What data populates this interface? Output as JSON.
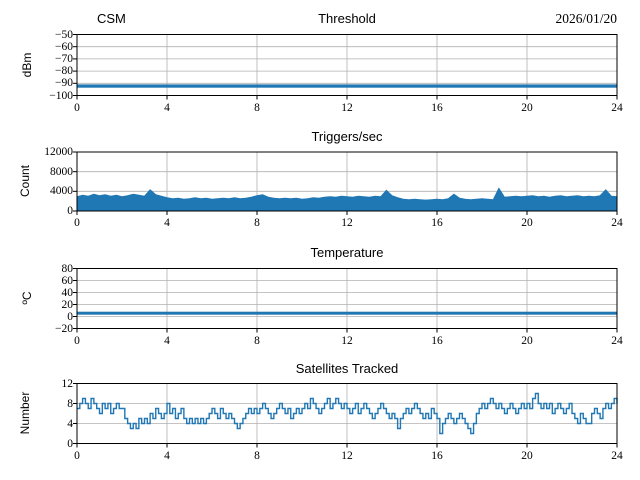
{
  "figure": {
    "background": "#ffffff",
    "accent": "#1f77b4",
    "grid_color": "#b0b0b0",
    "axis_color": "#000000",
    "text_color": "#000000"
  },
  "chart_data": [
    {
      "type": "line",
      "title": "Threshold",
      "title_left": "CSM",
      "title_right": "2026/01/20",
      "ylabel": "dBm",
      "ylim": [
        -100,
        -50
      ],
      "yticks": [
        -100,
        -90,
        -80,
        -70,
        -60,
        -50
      ],
      "xlim": [
        0,
        24
      ],
      "xticks": [
        0,
        4,
        8,
        12,
        16,
        20,
        24
      ],
      "grid": true,
      "legend": "none",
      "series": [
        {
          "name": "threshold_dbm",
          "style": "band",
          "y_center": -92.1,
          "y_band": [
            -93.6,
            -90.9
          ]
        }
      ]
    },
    {
      "type": "line",
      "title": "Triggers/sec",
      "ylabel": "Count",
      "ylim": [
        0,
        12000
      ],
      "yticks": [
        0,
        4000,
        8000,
        12000
      ],
      "xlim": [
        0,
        24
      ],
      "xticks": [
        0,
        4,
        8,
        12,
        16,
        20,
        24
      ],
      "grid": true,
      "legend": "none",
      "series": [
        {
          "name": "triggers_per_sec",
          "style": "fill_band",
          "baseline": 80,
          "x_step": 0.25,
          "envelope": [
            2900,
            3200,
            3000,
            3400,
            3100,
            3300,
            3000,
            3200,
            2900,
            3100,
            3400,
            3200,
            3000,
            4300,
            3300,
            3000,
            2700,
            2500,
            2600,
            2400,
            2500,
            2700,
            2500,
            2600,
            2400,
            2500,
            2600,
            2500,
            2700,
            2500,
            2600,
            2800,
            3100,
            3300,
            2800,
            2600,
            2500,
            2600,
            2500,
            2600,
            2400,
            2500,
            2700,
            2600,
            2800,
            2900,
            2800,
            3000,
            2900,
            2800,
            3000,
            2900,
            2800,
            3000,
            2900,
            4200,
            3100,
            2700,
            2400,
            2300,
            2400,
            2300,
            2200,
            2300,
            2400,
            2300,
            2500,
            3400,
            2600,
            2400,
            2300,
            2400,
            2500,
            2400,
            2300,
            4600,
            2800,
            2900,
            3000,
            2900,
            3000,
            3100,
            2900,
            3000,
            2800,
            3000,
            3100,
            2900,
            3000,
            3100,
            2900,
            3000,
            2900,
            3100,
            4300,
            3000,
            2900
          ]
        }
      ]
    },
    {
      "type": "line",
      "title": "Temperature",
      "ylabel": "ºC",
      "ylim": [
        -20,
        80
      ],
      "yticks": [
        -20,
        0,
        20,
        40,
        60,
        80
      ],
      "xlim": [
        0,
        24
      ],
      "xticks": [
        0,
        4,
        8,
        12,
        16,
        20,
        24
      ],
      "grid": true,
      "legend": "none",
      "series": [
        {
          "name": "temperature_c",
          "style": "band",
          "y_center": 5.5,
          "y_band": [
            3.0,
            8.0
          ]
        }
      ]
    },
    {
      "type": "line",
      "title": "Satellites Tracked",
      "ylabel": "Number",
      "ylim": [
        0,
        12
      ],
      "yticks": [
        0,
        4,
        8,
        12
      ],
      "xlim": [
        0,
        24
      ],
      "xticks": [
        0,
        4,
        8,
        12,
        16,
        20,
        24
      ],
      "grid": true,
      "legend": "none",
      "series": [
        {
          "name": "satellites_tracked",
          "style": "step",
          "x_step": 0.125,
          "values": [
            7,
            8,
            9,
            8,
            7,
            9,
            8,
            7,
            6,
            8,
            7,
            8,
            6,
            7,
            8,
            7,
            7,
            5,
            4,
            3,
            4,
            3,
            5,
            4,
            5,
            4,
            6,
            5,
            7,
            6,
            5,
            6,
            8,
            6,
            7,
            5,
            6,
            7,
            5,
            4,
            5,
            4,
            5,
            4,
            5,
            4,
            5,
            6,
            7,
            6,
            5,
            7,
            6,
            5,
            6,
            5,
            4,
            3,
            4,
            5,
            6,
            7,
            6,
            7,
            6,
            7,
            8,
            7,
            6,
            5,
            6,
            7,
            8,
            7,
            6,
            7,
            5,
            6,
            7,
            6,
            7,
            8,
            7,
            9,
            8,
            7,
            6,
            7,
            8,
            9,
            7,
            8,
            9,
            8,
            7,
            8,
            7,
            6,
            7,
            8,
            6,
            7,
            8,
            7,
            6,
            5,
            6,
            7,
            8,
            7,
            6,
            5,
            6,
            5,
            3,
            5,
            6,
            7,
            6,
            7,
            8,
            7,
            6,
            5,
            6,
            5,
            7,
            6,
            5,
            2,
            4,
            5,
            6,
            5,
            4,
            5,
            6,
            5,
            4,
            3,
            2,
            4,
            6,
            7,
            8,
            7,
            8,
            9,
            8,
            7,
            8,
            7,
            6,
            7,
            8,
            7,
            6,
            7,
            8,
            7,
            8,
            7,
            9,
            10,
            8,
            7,
            8,
            7,
            8,
            6,
            7,
            8,
            7,
            6,
            7,
            8,
            6,
            5,
            4,
            6,
            5,
            4,
            4,
            6,
            7,
            6,
            5,
            7,
            8,
            7,
            8,
            9,
            8
          ]
        }
      ]
    }
  ]
}
